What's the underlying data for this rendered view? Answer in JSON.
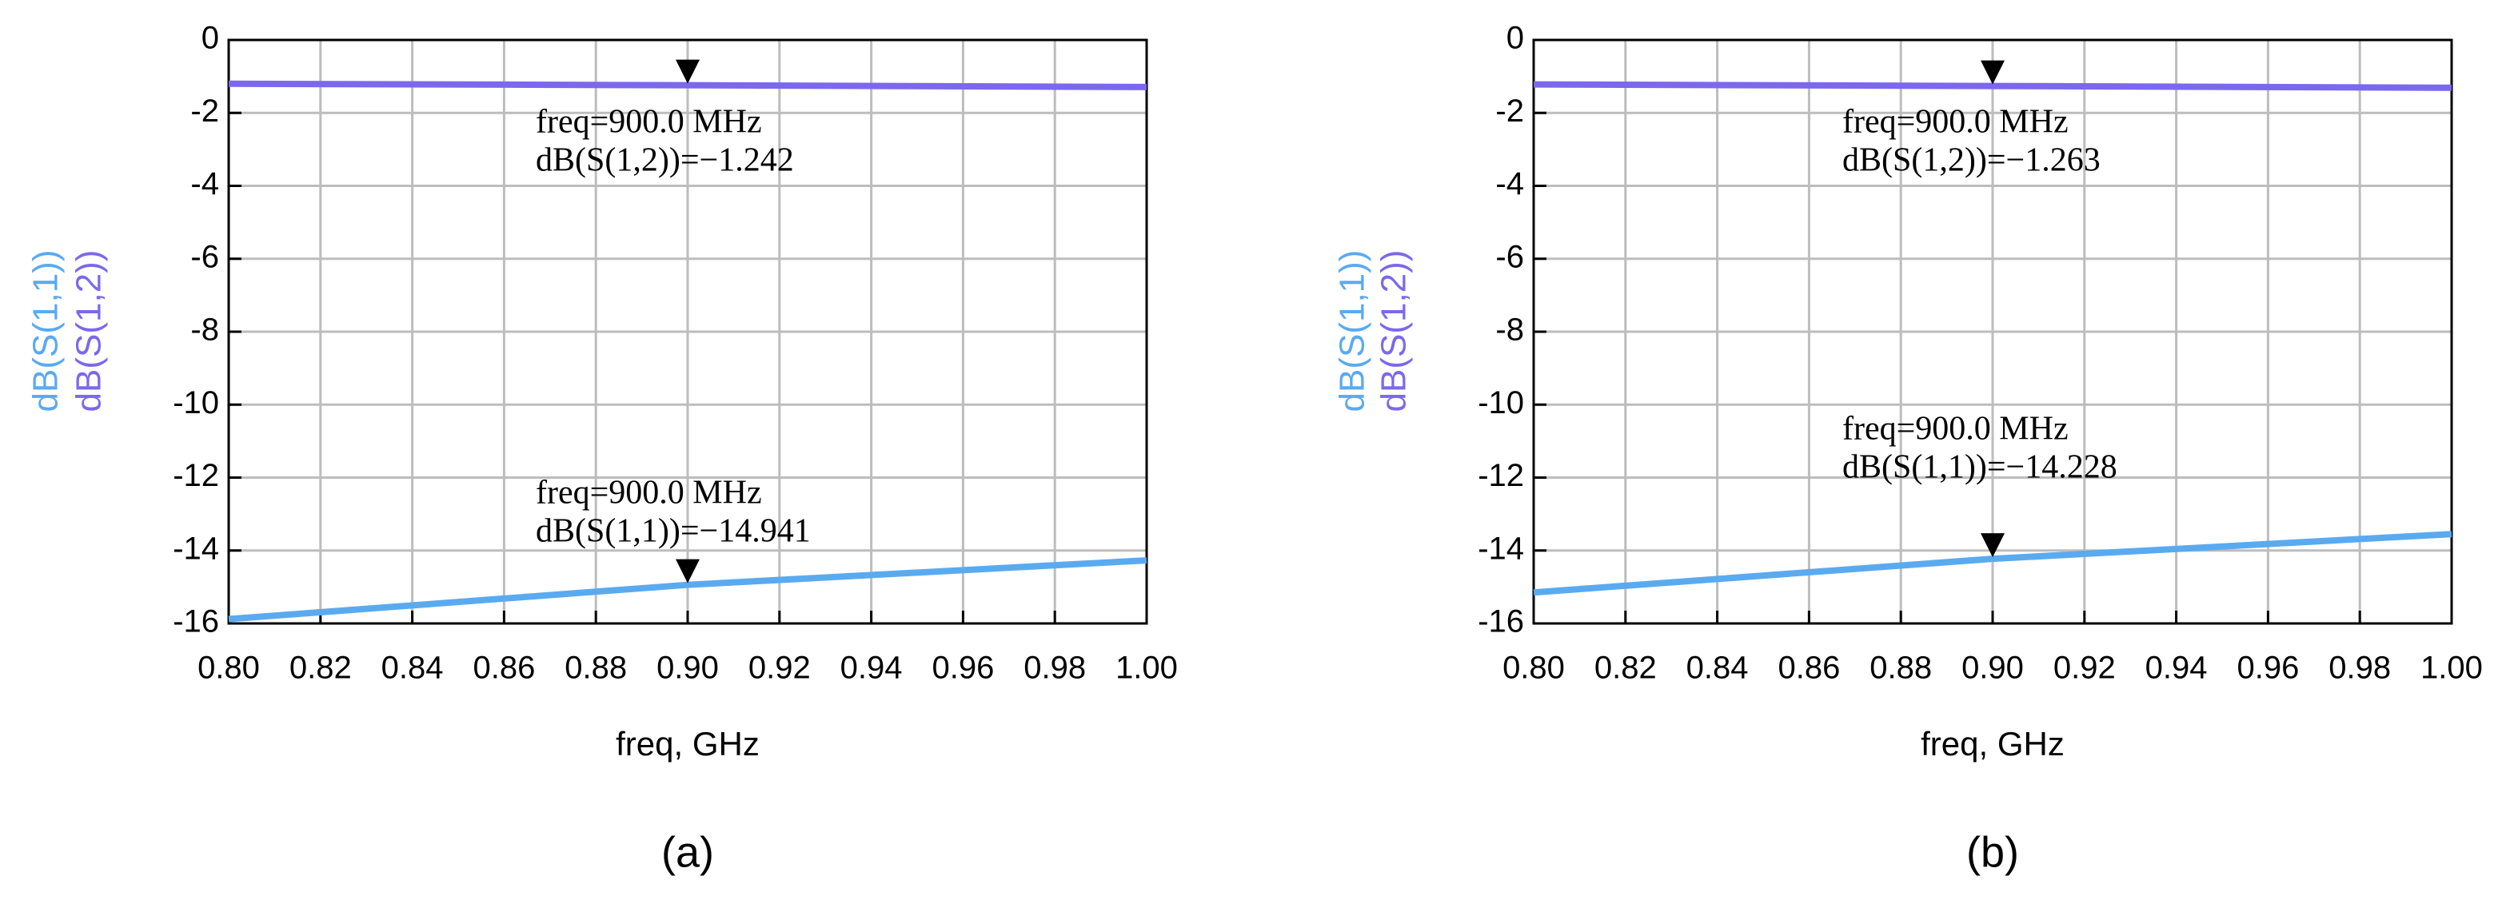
{
  "chart_data": [
    {
      "type": "line",
      "label": "(a)",
      "xlabel": "freq, GHz",
      "x": [
        0.8,
        0.9,
        1.0
      ],
      "series": [
        {
          "name": "dB(S(1,1))",
          "color": "#5aaaf0",
          "values": [
            -15.88,
            -14.941,
            -14.27
          ]
        },
        {
          "name": "dB(S(1,2))",
          "color": "#7b68ee",
          "values": [
            -1.2,
            -1.242,
            -1.29
          ]
        }
      ],
      "xlim": [
        0.8,
        1.0
      ],
      "xticks": [
        {
          "value": 0.8,
          "label": "0.80"
        },
        0.82,
        0.84,
        0.86,
        0.88,
        {
          "value": 0.9,
          "label": "0.90"
        },
        0.92,
        0.94,
        0.96,
        0.98,
        {
          "value": 1.0,
          "label": "1.00"
        }
      ],
      "ylim": [
        -16,
        0
      ],
      "yticks": [
        0,
        -2,
        -4,
        -6,
        -8,
        -10,
        -12,
        -14,
        -16
      ],
      "grid": true,
      "annotations": [
        {
          "x": 0.9,
          "y": -1.242,
          "lines": [
            "freq=900.0 MHz",
            "dB(S(1,2))=−1.242"
          ]
        },
        {
          "x": 0.9,
          "y": -14.941,
          "lines": [
            "freq=900.0 MHz",
            "dB(S(1,1))=−14.941"
          ]
        }
      ]
    },
    {
      "type": "line",
      "label": "(b)",
      "xlabel": "freq, GHz",
      "x": [
        0.8,
        0.9,
        1.0
      ],
      "series": [
        {
          "name": "dB(S(1,1))",
          "color": "#5aaaf0",
          "values": [
            -15.15,
            -14.228,
            -13.55
          ]
        },
        {
          "name": "dB(S(1,2))",
          "color": "#7b68ee",
          "values": [
            -1.22,
            -1.263,
            -1.31
          ]
        }
      ],
      "xlim": [
        0.8,
        1.0
      ],
      "xticks": [
        {
          "value": 0.8,
          "label": "0.80"
        },
        0.82,
        0.84,
        0.86,
        0.88,
        {
          "value": 0.9,
          "label": "0.90"
        },
        0.92,
        0.94,
        0.96,
        0.98,
        {
          "value": 1.0,
          "label": "1.00"
        }
      ],
      "ylim": [
        -16,
        0
      ],
      "yticks": [
        0,
        -2,
        -4,
        -6,
        -8,
        -10,
        -12,
        -14,
        -16
      ],
      "grid": true,
      "annotations": [
        {
          "x": 0.9,
          "y": -1.263,
          "lines": [
            "freq=900.0 MHz",
            "dB(S(1,2))=−1.263"
          ]
        },
        {
          "x": 0.9,
          "y": -14.228,
          "lines": [
            "freq=900.0 MHz",
            "dB(S(1,1))=−14.228"
          ]
        }
      ]
    }
  ]
}
